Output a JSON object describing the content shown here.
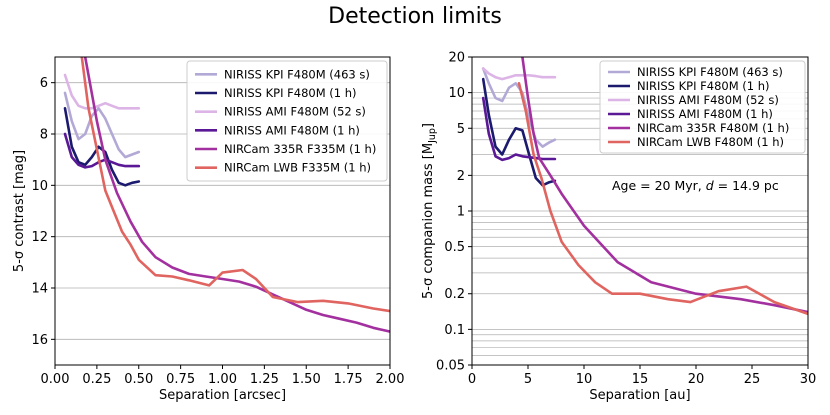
{
  "figure_title": "Detection limits",
  "colors": {
    "kpi_463": "#b3a9d6",
    "kpi_1h": "#1b1a6e",
    "ami_52": "#dcb5e6",
    "ami_1h": "#5a1796",
    "nircam_335r": "#a3309f",
    "nircam_lwb": "#e0645f",
    "grid": "#b0b0b0"
  },
  "chart_data": [
    {
      "type": "line",
      "xlabel": "Separation [arcsec]",
      "ylabel": "5-σ contrast [mag]",
      "xlim": [
        0.0,
        2.0
      ],
      "ylim": [
        17.0,
        5.0
      ],
      "y_inverted": true,
      "x_ticks": [
        "0.00",
        "0.25",
        "0.50",
        "0.75",
        "1.00",
        "1.25",
        "1.50",
        "1.75",
        "2.00"
      ],
      "y_ticks": [
        "6",
        "8",
        "10",
        "12",
        "14",
        "16"
      ],
      "grid": "horizontal",
      "legend_position": "top-right",
      "series": [
        {
          "name": "NIRISS KPI F480M (463 s)",
          "color_key": "kpi_463",
          "x": [
            0.06,
            0.1,
            0.14,
            0.18,
            0.22,
            0.26,
            0.3,
            0.34,
            0.38,
            0.42,
            0.46,
            0.5
          ],
          "y": [
            6.4,
            7.5,
            8.2,
            8.0,
            7.3,
            7.0,
            7.4,
            8.0,
            8.6,
            8.9,
            8.8,
            8.7
          ]
        },
        {
          "name": "NIRISS KPI F480M (1 h)",
          "color_key": "kpi_1h",
          "x": [
            0.06,
            0.1,
            0.14,
            0.18,
            0.22,
            0.26,
            0.3,
            0.34,
            0.38,
            0.42,
            0.46,
            0.5
          ],
          "y": [
            7.0,
            8.5,
            9.1,
            9.2,
            8.9,
            8.5,
            8.7,
            9.4,
            9.9,
            10.0,
            9.9,
            9.85
          ]
        },
        {
          "name": "NIRISS AMI F480M (52 s)",
          "color_key": "ami_52",
          "x": [
            0.06,
            0.1,
            0.14,
            0.18,
            0.22,
            0.26,
            0.3,
            0.34,
            0.38,
            0.42,
            0.46,
            0.5
          ],
          "y": [
            5.7,
            6.5,
            6.9,
            7.0,
            7.0,
            6.9,
            6.8,
            6.9,
            7.0,
            7.0,
            7.0,
            7.0
          ]
        },
        {
          "name": "NIRISS AMI F480M (1 h)",
          "color_key": "ami_1h",
          "x": [
            0.06,
            0.1,
            0.14,
            0.18,
            0.22,
            0.26,
            0.3,
            0.34,
            0.38,
            0.42,
            0.46,
            0.5
          ],
          "y": [
            8.0,
            8.9,
            9.2,
            9.3,
            9.25,
            9.1,
            9.0,
            9.1,
            9.2,
            9.25,
            9.25,
            9.25
          ]
        },
        {
          "name": "NIRCam 335R F335M (1 h)",
          "color_key": "nircam_335r",
          "x": [
            0.18,
            0.25,
            0.3,
            0.37,
            0.45,
            0.52,
            0.6,
            0.7,
            0.8,
            0.9,
            1.0,
            1.1,
            1.2,
            1.3,
            1.4,
            1.5,
            1.6,
            1.7,
            1.8,
            1.9,
            2.0
          ],
          "y": [
            5.0,
            7.5,
            9.0,
            10.3,
            11.4,
            12.2,
            12.8,
            13.2,
            13.45,
            13.55,
            13.65,
            13.75,
            13.95,
            14.25,
            14.55,
            14.85,
            15.05,
            15.2,
            15.35,
            15.55,
            15.7
          ]
        },
        {
          "name": "NIRCam LWB F335M (1 h)",
          "color_key": "nircam_lwb",
          "x": [
            0.16,
            0.2,
            0.25,
            0.3,
            0.35,
            0.4,
            0.45,
            0.5,
            0.6,
            0.7,
            0.8,
            0.92,
            1.0,
            1.12,
            1.2,
            1.3,
            1.45,
            1.6,
            1.75,
            1.9,
            2.0
          ],
          "y": [
            5.0,
            7.0,
            8.6,
            10.2,
            11.0,
            11.8,
            12.3,
            12.9,
            13.5,
            13.55,
            13.7,
            13.9,
            13.4,
            13.3,
            13.65,
            14.35,
            14.55,
            14.5,
            14.6,
            14.8,
            14.9
          ]
        }
      ]
    },
    {
      "type": "line",
      "xlabel": "Separation [au]",
      "ylabel": "5-σ companion mass [M",
      "ylabel_sub": "Jup",
      "ylabel_end": "]",
      "xlim": [
        0,
        30
      ],
      "ylim": [
        0.05,
        20
      ],
      "y_scale": "log",
      "x_ticks": [
        "0",
        "5",
        "10",
        "15",
        "20",
        "25",
        "30"
      ],
      "y_ticks": [
        "0.05",
        "0.1",
        "0.2",
        "0.5",
        "1",
        "2",
        "5",
        "10",
        "20"
      ],
      "grid": "horizontal",
      "legend_position": "top-right",
      "annotation": {
        "prefix": "Age = 20 Myr, ",
        "d_symbol": "d",
        "suffix": " = 14.9 pc"
      },
      "series": [
        {
          "name": "NIRISS KPI F480M (463 s)",
          "color_key": "kpi_463",
          "x": [
            1.0,
            1.5,
            2.1,
            2.7,
            3.3,
            3.9,
            4.5,
            5.1,
            5.7,
            6.3,
            6.9,
            7.4
          ],
          "y": [
            16,
            12,
            9.0,
            8.5,
            11,
            12,
            10,
            6.0,
            4.0,
            3.5,
            3.8,
            4.0
          ]
        },
        {
          "name": "NIRISS KPI F480M (1 h)",
          "color_key": "kpi_1h",
          "x": [
            1.0,
            1.5,
            2.1,
            2.7,
            3.3,
            3.9,
            4.5,
            5.1,
            5.7,
            6.3,
            6.9,
            7.4
          ],
          "y": [
            13,
            6.5,
            3.5,
            3.0,
            4.0,
            5.0,
            4.8,
            3.0,
            1.9,
            1.65,
            1.75,
            1.8
          ]
        },
        {
          "name": "NIRISS AMI F480M (52 s)",
          "color_key": "ami_52",
          "x": [
            1.0,
            1.5,
            2.1,
            2.7,
            3.3,
            3.9,
            4.5,
            5.1,
            5.7,
            6.3,
            6.9,
            7.4
          ],
          "y": [
            16,
            14.5,
            13.5,
            13,
            13.5,
            14,
            14,
            14,
            13.8,
            13.5,
            13.5,
            13.5
          ]
        },
        {
          "name": "NIRISS AMI F480M (1 h)",
          "color_key": "ami_1h",
          "x": [
            1.0,
            1.5,
            2.1,
            2.7,
            3.3,
            3.9,
            4.5,
            5.1,
            5.7,
            6.3,
            6.9,
            7.4
          ],
          "y": [
            9.0,
            4.5,
            2.9,
            2.7,
            2.8,
            3.0,
            2.9,
            2.85,
            2.8,
            2.75,
            2.75,
            2.75
          ]
        },
        {
          "name": "NIRCam 335R F480M (1 h)",
          "color_key": "nircam_335r",
          "x": [
            4.5,
            5.0,
            5.5,
            6.0,
            7.0,
            8.0,
            10.0,
            13.0,
            16.0,
            20.0,
            24.0,
            27.0,
            30.0
          ],
          "y": [
            20,
            9.0,
            4.5,
            2.8,
            2.0,
            1.4,
            0.75,
            0.37,
            0.25,
            0.2,
            0.18,
            0.16,
            0.14
          ]
        },
        {
          "name": "NIRCam LWB F480M (1 h)",
          "color_key": "nircam_lwb",
          "x": [
            4.2,
            4.8,
            5.5,
            6.2,
            7.0,
            8.0,
            9.5,
            11.0,
            12.5,
            15.0,
            17.5,
            19.5,
            22.0,
            24.5,
            27.0,
            30.0
          ],
          "y": [
            12.0,
            7.0,
            3.0,
            1.9,
            1.0,
            0.55,
            0.35,
            0.25,
            0.2,
            0.2,
            0.18,
            0.17,
            0.21,
            0.23,
            0.17,
            0.135
          ]
        }
      ]
    }
  ]
}
